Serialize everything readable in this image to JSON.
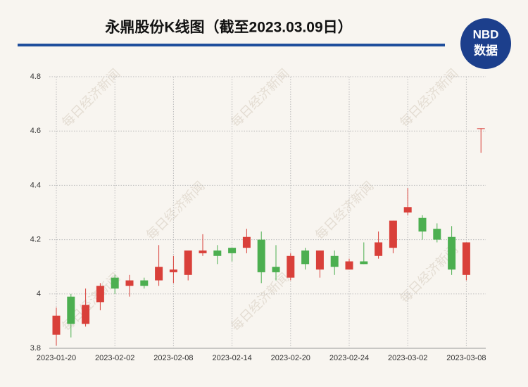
{
  "chart_data": {
    "type": "candlestick",
    "title": "永鼎股份K线图（截至2023.03.09日）",
    "logo": {
      "top": "NBD",
      "bottom": "数据"
    },
    "watermark": "每日经济新闻",
    "categories": [
      "2023-01-20",
      null,
      null,
      null,
      "2023-02-02",
      null,
      null,
      null,
      "2023-02-08",
      null,
      null,
      null,
      "2023-02-14",
      null,
      null,
      null,
      "2023-02-20",
      null,
      null,
      null,
      "2023-02-24",
      null,
      null,
      null,
      "2023-03-02",
      null,
      null,
      null,
      "2023-03-08",
      null
    ],
    "open": [
      3.85,
      3.99,
      3.89,
      3.97,
      4.06,
      4.03,
      4.05,
      4.05,
      4.08,
      4.07,
      4.15,
      4.16,
      4.17,
      4.17,
      4.2,
      4.1,
      4.06,
      4.16,
      4.09,
      4.14,
      4.09,
      4.12,
      4.14,
      4.17,
      4.3,
      4.28,
      4.24,
      4.21,
      4.07,
      4.61
    ],
    "high": [
      3.95,
      4.0,
      4.02,
      4.04,
      4.07,
      4.07,
      4.06,
      4.18,
      4.14,
      4.16,
      4.22,
      4.18,
      4.17,
      4.24,
      4.23,
      4.18,
      4.15,
      4.17,
      4.16,
      4.16,
      4.13,
      4.19,
      4.23,
      4.27,
      4.39,
      4.29,
      4.26,
      4.25,
      4.19,
      4.61
    ],
    "low": [
      3.81,
      3.84,
      3.88,
      3.94,
      4.0,
      3.99,
      4.02,
      4.03,
      4.04,
      4.05,
      4.14,
      4.11,
      4.12,
      4.15,
      4.04,
      4.05,
      4.05,
      4.09,
      4.06,
      4.07,
      4.09,
      4.11,
      4.13,
      4.15,
      4.29,
      4.2,
      4.19,
      4.07,
      4.05,
      4.52
    ],
    "close": [
      3.92,
      3.89,
      3.96,
      4.03,
      4.02,
      4.05,
      4.03,
      4.1,
      4.09,
      4.16,
      4.16,
      4.14,
      4.15,
      4.21,
      4.08,
      4.08,
      4.14,
      4.11,
      4.16,
      4.1,
      4.12,
      4.11,
      4.19,
      4.27,
      4.32,
      4.23,
      4.2,
      4.09,
      4.19,
      4.61
    ],
    "up_color": "#d9403a",
    "down_color": "#4caf50",
    "ylim": [
      3.8,
      4.8
    ],
    "yticks": [
      3.8,
      4,
      4.2,
      4.4,
      4.6,
      4.8
    ],
    "grid": true
  }
}
